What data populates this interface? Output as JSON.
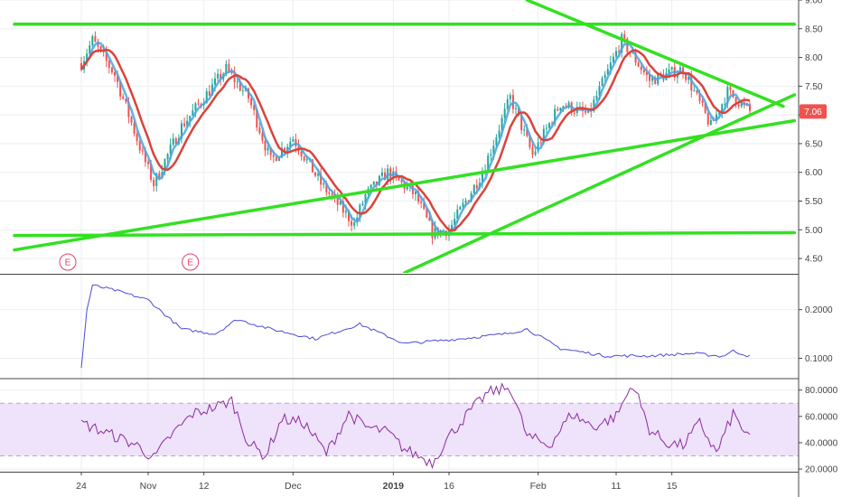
{
  "chart_data": [
    {
      "type": "candlestick",
      "panel": "price",
      "ylim": [
        4.25,
        9.0
      ],
      "y_ticks": [
        "9.00",
        "8.50",
        "8.00",
        "7.50",
        "7.00",
        "6.50",
        "6.00",
        "5.50",
        "5.00",
        "4.50"
      ],
      "last_price_label": "7.06",
      "last_price": 7.06,
      "earnings_marker": "E",
      "earnings_x_labels": [
        "24",
        "12"
      ],
      "series": [
        {
          "kind": "fast-ma",
          "color": "#4aa3df"
        },
        {
          "kind": "slow-ma",
          "color": "#d9443c"
        }
      ],
      "price_path": [
        {
          "x": 0.0,
          "y": 7.9
        },
        {
          "x": 1.0,
          "y": 8.3
        },
        {
          "x": 3.0,
          "y": 7.7
        },
        {
          "x": 5.5,
          "y": 6.3
        },
        {
          "x": 6.5,
          "y": 5.8
        },
        {
          "x": 9.0,
          "y": 6.8
        },
        {
          "x": 13.0,
          "y": 7.8
        },
        {
          "x": 15.0,
          "y": 7.3
        },
        {
          "x": 17.0,
          "y": 6.2
        },
        {
          "x": 19.0,
          "y": 6.6
        },
        {
          "x": 21.5,
          "y": 5.8
        },
        {
          "x": 24.5,
          "y": 5.1
        },
        {
          "x": 25.5,
          "y": 5.6
        },
        {
          "x": 27.5,
          "y": 6.0
        },
        {
          "x": 30.0,
          "y": 5.6
        },
        {
          "x": 31.5,
          "y": 4.95
        },
        {
          "x": 33.0,
          "y": 5.0
        },
        {
          "x": 36.0,
          "y": 6.0
        },
        {
          "x": 38.5,
          "y": 7.3
        },
        {
          "x": 40.5,
          "y": 6.3
        },
        {
          "x": 43.0,
          "y": 7.2
        },
        {
          "x": 45.5,
          "y": 7.0
        },
        {
          "x": 48.5,
          "y": 8.3
        },
        {
          "x": 51.0,
          "y": 7.6
        },
        {
          "x": 54.0,
          "y": 7.8
        },
        {
          "x": 56.5,
          "y": 6.8
        },
        {
          "x": 58.0,
          "y": 7.4
        },
        {
          "x": 60.0,
          "y": 7.06
        }
      ],
      "trendlines": [
        {
          "name": "top-horizontal",
          "color": "#33e022",
          "points": [
            {
              "x": -6.0,
              "y": 8.58
            },
            {
              "x": 64.0,
              "y": 8.58
            }
          ]
        },
        {
          "name": "bottom-horizontal",
          "color": "#33e022",
          "points": [
            {
              "x": -6.0,
              "y": 4.9
            },
            {
              "x": 64.0,
              "y": 4.95
            }
          ]
        },
        {
          "name": "rising-support",
          "color": "#33e022",
          "points": [
            {
              "x": -6.0,
              "y": 4.65
            },
            {
              "x": 64.0,
              "y": 6.9
            }
          ]
        },
        {
          "name": "falling-resistance",
          "color": "#33e022",
          "points": [
            {
              "x": 40.0,
              "y": 9.0
            },
            {
              "x": 63.0,
              "y": 7.15
            }
          ]
        },
        {
          "name": "steep-support",
          "color": "#33e022",
          "points": [
            {
              "x": 29.0,
              "y": 4.25
            },
            {
              "x": 64.0,
              "y": 7.35
            }
          ]
        }
      ]
    },
    {
      "type": "line",
      "panel": "indicator-1",
      "ylim": [
        0.06,
        0.27
      ],
      "y_ticks": [
        "0.2000",
        "0.1000"
      ],
      "color": "#4b4bd6",
      "points": [
        {
          "x": 0.0,
          "y": 0.08
        },
        {
          "x": 0.5,
          "y": 0.2
        },
        {
          "x": 1.0,
          "y": 0.25
        },
        {
          "x": 3.0,
          "y": 0.24
        },
        {
          "x": 6.0,
          "y": 0.22
        },
        {
          "x": 9.0,
          "y": 0.16
        },
        {
          "x": 12.0,
          "y": 0.15
        },
        {
          "x": 14.0,
          "y": 0.18
        },
        {
          "x": 17.0,
          "y": 0.16
        },
        {
          "x": 21.0,
          "y": 0.14
        },
        {
          "x": 25.0,
          "y": 0.17
        },
        {
          "x": 29.0,
          "y": 0.13
        },
        {
          "x": 34.0,
          "y": 0.14
        },
        {
          "x": 38.0,
          "y": 0.15
        },
        {
          "x": 40.0,
          "y": 0.16
        },
        {
          "x": 43.0,
          "y": 0.12
        },
        {
          "x": 47.0,
          "y": 0.105
        },
        {
          "x": 51.0,
          "y": 0.105
        },
        {
          "x": 55.0,
          "y": 0.11
        },
        {
          "x": 57.5,
          "y": 0.104
        },
        {
          "x": 58.5,
          "y": 0.115
        },
        {
          "x": 60.0,
          "y": 0.104
        }
      ]
    },
    {
      "type": "line",
      "panel": "rsi",
      "ylim": [
        18,
        88
      ],
      "y_ticks": [
        "80.0000",
        "60.0000",
        "40.0000",
        "20.0000"
      ],
      "band": [
        30,
        70
      ],
      "color": "#8a2c9e",
      "points": [
        {
          "x": 0.0,
          "y": 55
        },
        {
          "x": 1.5,
          "y": 50
        },
        {
          "x": 3.0,
          "y": 45
        },
        {
          "x": 5.0,
          "y": 38
        },
        {
          "x": 6.5,
          "y": 28
        },
        {
          "x": 8.0,
          "y": 45
        },
        {
          "x": 10.0,
          "y": 62
        },
        {
          "x": 12.0,
          "y": 67
        },
        {
          "x": 13.5,
          "y": 72
        },
        {
          "x": 15.0,
          "y": 40
        },
        {
          "x": 16.5,
          "y": 30
        },
        {
          "x": 18.0,
          "y": 58
        },
        {
          "x": 20.0,
          "y": 55
        },
        {
          "x": 22.0,
          "y": 32
        },
        {
          "x": 24.0,
          "y": 62
        },
        {
          "x": 25.5,
          "y": 52
        },
        {
          "x": 27.5,
          "y": 48
        },
        {
          "x": 29.0,
          "y": 35
        },
        {
          "x": 31.5,
          "y": 25
        },
        {
          "x": 33.0,
          "y": 45
        },
        {
          "x": 35.0,
          "y": 65
        },
        {
          "x": 36.5,
          "y": 78
        },
        {
          "x": 38.5,
          "y": 82
        },
        {
          "x": 40.0,
          "y": 45
        },
        {
          "x": 42.0,
          "y": 38
        },
        {
          "x": 44.0,
          "y": 62
        },
        {
          "x": 46.0,
          "y": 52
        },
        {
          "x": 48.0,
          "y": 60
        },
        {
          "x": 49.5,
          "y": 85
        },
        {
          "x": 51.0,
          "y": 50
        },
        {
          "x": 52.5,
          "y": 40
        },
        {
          "x": 54.0,
          "y": 38
        },
        {
          "x": 55.5,
          "y": 55
        },
        {
          "x": 57.0,
          "y": 32
        },
        {
          "x": 58.5,
          "y": 62
        },
        {
          "x": 60.0,
          "y": 42
        }
      ]
    }
  ],
  "x_axis": {
    "labels": [
      {
        "text": "24",
        "x": 0.0,
        "bold": false
      },
      {
        "text": "Nov",
        "x": 6.0,
        "bold": false
      },
      {
        "text": "12",
        "x": 11.0,
        "bold": false
      },
      {
        "text": "Dec",
        "x": 19.0,
        "bold": false
      },
      {
        "text": "2019",
        "x": 28.0,
        "bold": true
      },
      {
        "text": "16",
        "x": 33.0,
        "bold": false
      },
      {
        "text": "Feb",
        "x": 41.0,
        "bold": false
      },
      {
        "text": "11",
        "x": 48.0,
        "bold": false
      },
      {
        "text": "15",
        "x": 53.0,
        "bold": false
      }
    ]
  },
  "colors": {
    "background": "#ffffff",
    "grid": "#eceef2",
    "trendline": "#33e022",
    "up_candle": "#26a69a",
    "down_candle": "#ef5350",
    "fast_ma": "#4aa3df",
    "slow_ma": "#d9443c",
    "indicator_line": "#4b4bd6",
    "rsi_line": "#8a2c9e",
    "rsi_band": "#efe2fb",
    "price_badge": "#ef5350",
    "earnings": "#e0416a",
    "axis_text": "#444444",
    "separator": "#444444"
  }
}
